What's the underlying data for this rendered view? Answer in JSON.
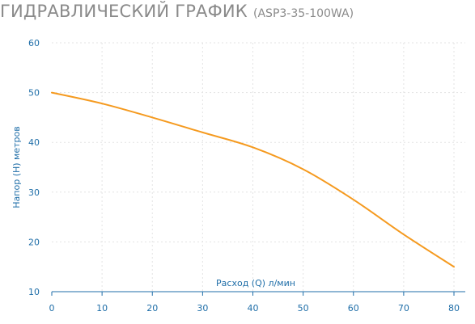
{
  "header": {
    "title": "ГИДРАВЛИЧЕСКИЙ ГРАФИК",
    "model": "(ASP3-35-100WA)"
  },
  "chart_data": {
    "type": "line",
    "xlabel": "Расход (Q) л/мин",
    "ylabel": "Напор (H) метров",
    "xlim": [
      0,
      80
    ],
    "ylim": [
      10,
      60
    ],
    "xticks": [
      0,
      10,
      20,
      30,
      40,
      50,
      60,
      70,
      80
    ],
    "yticks": [
      10,
      20,
      30,
      40,
      50,
      60
    ],
    "grid": true,
    "series": [
      {
        "color": "#f59a1f",
        "x": [
          0,
          10,
          20,
          30,
          40,
          50,
          60,
          70,
          80
        ],
        "y": [
          50,
          47.8,
          45,
          42,
          39,
          34.6,
          28.5,
          21.5,
          15
        ]
      }
    ]
  },
  "colors": {
    "title": "#8a8a8a",
    "axis_text": "#1f6ea8",
    "grid": "#e3e3e3",
    "line": "#f59a1f"
  }
}
